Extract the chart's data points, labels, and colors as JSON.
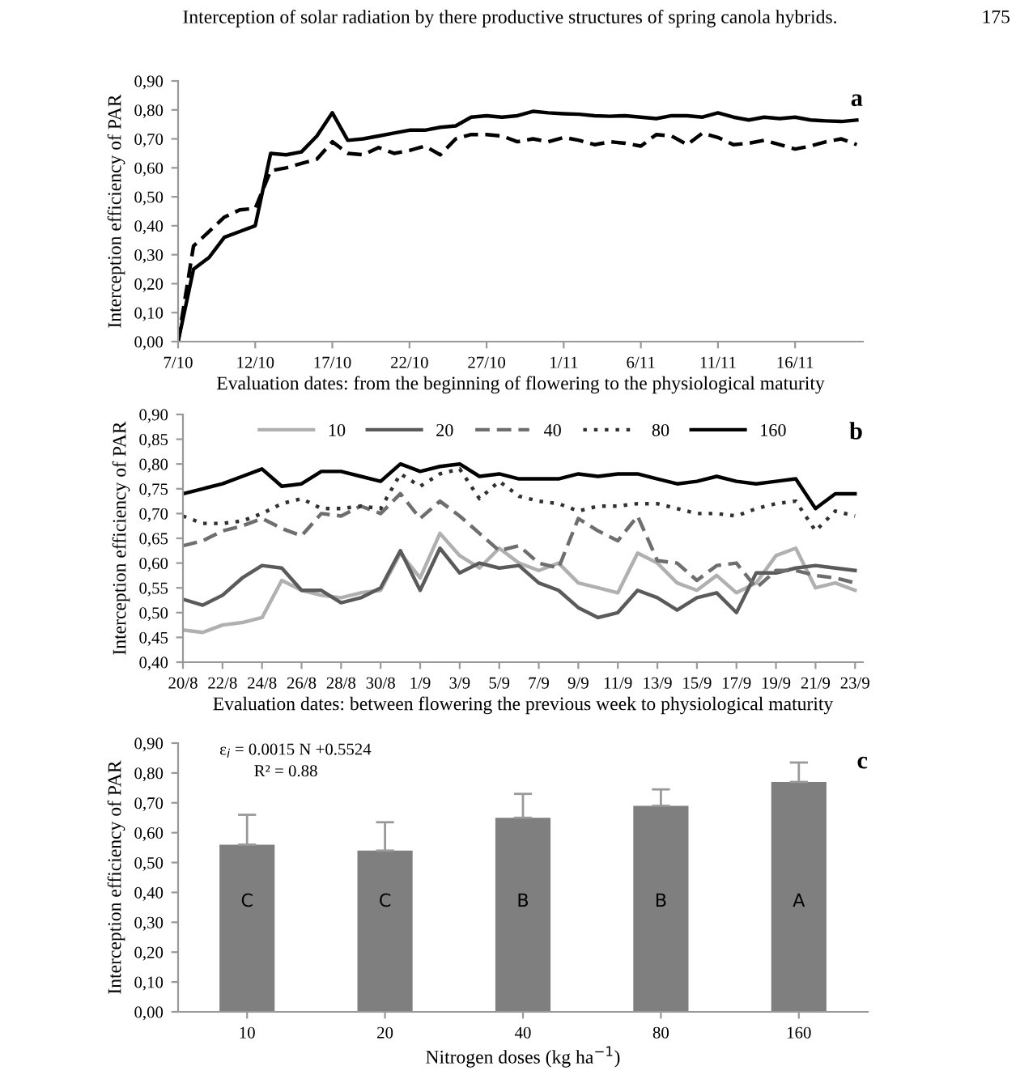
{
  "chart_data": [
    {
      "type": "line",
      "ylabel": "Interception efficiency of PAR",
      "xlabel": "Evaluation dates: from the beginning of flowering to the physiological maturity",
      "annotations": [
        "a",
        "Interception of solar radiation by there productive structures of spring canola hybrids.",
        "175"
      ],
      "categories": [
        "7/10",
        null,
        null,
        null,
        null,
        "12/10",
        null,
        null,
        null,
        null,
        "17/10",
        null,
        null,
        null,
        null,
        "22/10",
        null,
        null,
        null,
        null,
        "27/10",
        null,
        null,
        null,
        null,
        "1/11",
        null,
        null,
        null,
        null,
        "6/11",
        null,
        null,
        null,
        null,
        "11/11",
        null,
        null,
        null,
        null,
        "16/11",
        null,
        null,
        null,
        null
      ],
      "ylim": [
        0,
        0.9
      ],
      "yticks": [
        {
          "value": 0,
          "label": "0,00"
        },
        {
          "value": 0.1,
          "label": "0,10"
        },
        {
          "value": 0.2,
          "label": "0,20"
        },
        {
          "value": 0.3,
          "label": "0,30"
        },
        {
          "value": 0.4,
          "label": "0,40"
        },
        {
          "value": 0.5,
          "label": "0,50"
        },
        {
          "value": 0.6,
          "label": "0,60"
        },
        {
          "value": 0.7,
          "label": "0,70"
        },
        {
          "value": 0.8,
          "label": "0,80"
        },
        {
          "value": 0.9,
          "label": "0,90"
        }
      ],
      "series": [
        {
          "color": "#000000",
          "line_style": "solid",
          "values": [
            0.0,
            0.25,
            0.29,
            0.36,
            0.38,
            0.4,
            0.65,
            0.645,
            0.655,
            0.71,
            0.79,
            0.695,
            0.7,
            0.71,
            0.72,
            0.73,
            0.73,
            0.74,
            0.745,
            0.775,
            0.78,
            0.775,
            0.78,
            0.795,
            0.79,
            0.787,
            0.785,
            0.78,
            0.778,
            0.78,
            0.775,
            0.77,
            0.78,
            0.78,
            0.775,
            0.79,
            0.775,
            0.765,
            0.775,
            0.77,
            0.775,
            0.765,
            0.762,
            0.76,
            0.765
          ]
        },
        {
          "color": "#000000",
          "line_style": "dashed",
          "values": [
            0.0,
            0.33,
            0.38,
            0.43,
            0.455,
            0.46,
            0.59,
            0.6,
            0.615,
            0.63,
            0.69,
            0.65,
            0.645,
            0.67,
            0.65,
            0.66,
            0.675,
            0.645,
            0.7,
            0.715,
            0.715,
            0.71,
            0.69,
            0.7,
            0.69,
            0.705,
            0.695,
            0.68,
            0.69,
            0.685,
            0.675,
            0.715,
            0.71,
            0.68,
            0.72,
            0.705,
            0.68,
            0.685,
            0.695,
            0.68,
            0.665,
            0.675,
            0.69,
            0.7,
            0.68
          ]
        }
      ],
      "marker": "none",
      "grid": false
    },
    {
      "type": "line",
      "ylabel": "Interception efficiency of PAR",
      "xlabel": "Evaluation dates: between flowering the previous week to physiological maturity",
      "annotations": [
        "b"
      ],
      "categories": [
        "20/8",
        null,
        "22/8",
        null,
        "24/8",
        null,
        "26/8",
        null,
        "28/8",
        null,
        "30/8",
        null,
        "1/9",
        null,
        "3/9",
        null,
        "5/9",
        null,
        "7/9",
        null,
        "9/9",
        null,
        "11/9",
        null,
        "13/9",
        null,
        "15/9",
        null,
        "17/9",
        null,
        "19/9",
        null,
        "21/9",
        null,
        "23/9"
      ],
      "ylim": [
        0.4,
        0.9
      ],
      "yticks": [
        {
          "value": 0.4,
          "label": "0,40"
        },
        {
          "value": 0.45,
          "label": "0,45"
        },
        {
          "value": 0.5,
          "label": "0,50"
        },
        {
          "value": 0.55,
          "label": "0,55"
        },
        {
          "value": 0.6,
          "label": "0,60"
        },
        {
          "value": 0.65,
          "label": "0,65"
        },
        {
          "value": 0.7,
          "label": "0,70"
        },
        {
          "value": 0.75,
          "label": "0,75"
        },
        {
          "value": 0.8,
          "label": "0,80"
        },
        {
          "value": 0.85,
          "label": "0,85"
        },
        {
          "value": 0.9,
          "label": "0,90"
        }
      ],
      "series": [
        {
          "name": "10",
          "color": "#b0b0b0",
          "line_style": "solid",
          "values": [
            0.465,
            0.46,
            0.475,
            0.48,
            0.49,
            0.565,
            0.545,
            0.535,
            0.53,
            0.54,
            0.545,
            0.62,
            0.57,
            0.66,
            0.615,
            0.59,
            0.63,
            0.6,
            0.585,
            0.6,
            0.56,
            0.55,
            0.54,
            0.62,
            0.6,
            0.56,
            0.545,
            0.575,
            0.54,
            0.56,
            0.615,
            0.63,
            0.55,
            0.56,
            0.545
          ]
        },
        {
          "name": "20",
          "color": "#5a5a5a",
          "line_style": "solid",
          "values": [
            0.527,
            0.515,
            0.535,
            0.57,
            0.595,
            0.59,
            0.545,
            0.545,
            0.52,
            0.53,
            0.55,
            0.625,
            0.545,
            0.63,
            0.58,
            0.6,
            0.59,
            0.595,
            0.56,
            0.545,
            0.51,
            0.49,
            0.5,
            0.545,
            0.53,
            0.505,
            0.53,
            0.54,
            0.5,
            0.58,
            0.58,
            0.59,
            0.595,
            0.59,
            0.585
          ]
        },
        {
          "name": "40",
          "color": "#6e6e6e",
          "line_style": "dashed",
          "values": [
            0.635,
            0.645,
            0.665,
            0.675,
            0.69,
            0.67,
            0.655,
            0.7,
            0.695,
            0.715,
            0.7,
            0.74,
            0.69,
            0.725,
            0.695,
            0.66,
            0.625,
            0.635,
            0.6,
            0.59,
            0.69,
            0.665,
            0.645,
            0.695,
            0.605,
            0.6,
            0.565,
            0.595,
            0.6,
            0.55,
            0.585,
            0.585,
            0.575,
            0.57,
            0.56
          ]
        },
        {
          "name": "80",
          "color": "#303030",
          "line_style": "dotted",
          "values": [
            0.695,
            0.68,
            0.68,
            0.685,
            0.7,
            0.72,
            0.73,
            0.71,
            0.71,
            0.715,
            0.71,
            0.78,
            0.755,
            0.78,
            0.79,
            0.73,
            0.765,
            0.735,
            0.725,
            0.72,
            0.705,
            0.715,
            0.715,
            0.72,
            0.72,
            0.71,
            0.7,
            0.7,
            0.695,
            0.71,
            0.72,
            0.725,
            0.665,
            0.705,
            0.695
          ]
        },
        {
          "name": "160",
          "color": "#000000",
          "line_style": "solid",
          "values": [
            0.74,
            0.75,
            0.76,
            0.775,
            0.79,
            0.755,
            0.76,
            0.785,
            0.785,
            0.775,
            0.765,
            0.8,
            0.785,
            0.795,
            0.8,
            0.775,
            0.78,
            0.77,
            0.77,
            0.77,
            0.78,
            0.775,
            0.78,
            0.78,
            0.77,
            0.76,
            0.765,
            0.775,
            0.765,
            0.76,
            0.765,
            0.77,
            0.71,
            0.74,
            0.74
          ]
        }
      ],
      "marker": "none",
      "grid": false,
      "legend": "top"
    },
    {
      "type": "bar",
      "ylabel": "Interception efficiency of PAR",
      "xlabel": "Nitrogen doses (kg ha$^{−1}$)",
      "annotations": [
        "c",
        "ε$_{i}$ = 0.0015 N +0.5524",
        "R² = 0.88",
        "C",
        "C",
        "B",
        "B",
        "A"
      ],
      "categories": [
        "10",
        "20",
        "40",
        "80",
        "160"
      ],
      "values": [
        0.56,
        0.54,
        0.65,
        0.69,
        0.77
      ],
      "color": "#7f7f7f",
      "errors": [
        [
          0.56,
          0.66
        ],
        [
          0.54,
          0.635
        ],
        [
          0.65,
          0.73
        ],
        [
          0.69,
          0.745
        ],
        [
          0.77,
          0.835
        ]
      ],
      "ylim": [
        0,
        0.9
      ],
      "yticks": [
        {
          "value": 0,
          "label": "0,00"
        },
        {
          "value": 0.1,
          "label": "0,10"
        },
        {
          "value": 0.2,
          "label": "0,20"
        },
        {
          "value": 0.3,
          "label": "0,30"
        },
        {
          "value": 0.4,
          "label": "0,40"
        },
        {
          "value": 0.5,
          "label": "0,50"
        },
        {
          "value": 0.6,
          "label": "0,60"
        },
        {
          "value": 0.7,
          "label": "0,70"
        },
        {
          "value": 0.8,
          "label": "0,80"
        },
        {
          "value": 0.9,
          "label": "0,90"
        }
      ],
      "grid": false
    }
  ]
}
